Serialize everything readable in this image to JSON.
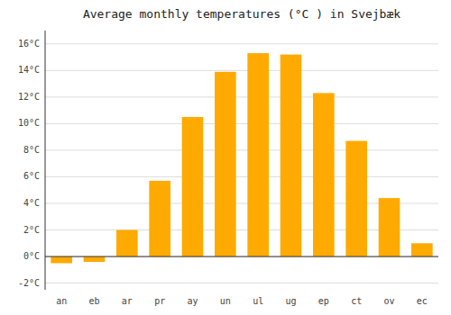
{
  "chart_data": {
    "type": "bar",
    "title": "Average monthly temperatures (°C ) in Svejbæk",
    "categories": [
      "an",
      "eb",
      "ar",
      "pr",
      "ay",
      "un",
      "ul",
      "ug",
      "ep",
      "ct",
      "ov",
      "ec"
    ],
    "values": [
      -0.5,
      -0.4,
      2.0,
      5.7,
      10.5,
      13.9,
      15.3,
      15.2,
      12.3,
      8.7,
      4.4,
      1.0
    ],
    "color": "#FFAA00",
    "ylim": [
      -2.5,
      17.0
    ],
    "yticks": [
      {
        "value": -2,
        "label": "-2°C"
      },
      {
        "value": 0,
        "label": "0°C"
      },
      {
        "value": 2,
        "label": "2°C"
      },
      {
        "value": 4,
        "label": "4°C"
      },
      {
        "value": 6,
        "label": "6°C"
      },
      {
        "value": 8,
        "label": "8°C"
      },
      {
        "value": 10,
        "label": "10°C"
      },
      {
        "value": 12,
        "label": "12°C"
      },
      {
        "value": 14,
        "label": "14°C"
      },
      {
        "value": 16,
        "label": "16°C"
      }
    ],
    "grid": true
  }
}
